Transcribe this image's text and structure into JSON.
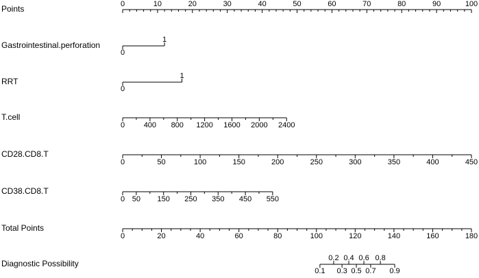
{
  "chart_data": {
    "type": "nomogram",
    "rows": [
      {
        "label": "Points",
        "range": [
          0,
          100
        ],
        "ticks": [
          0,
          10,
          20,
          30,
          40,
          50,
          60,
          70,
          80,
          90,
          100
        ],
        "minor_ticks": [
          2,
          4,
          6,
          8,
          12,
          14,
          16,
          18,
          22,
          24,
          26,
          28,
          32,
          34,
          36,
          38,
          42,
          44,
          46,
          48,
          52,
          54,
          56,
          58,
          62,
          64,
          66,
          68,
          72,
          74,
          76,
          78,
          82,
          84,
          86,
          88,
          92,
          94,
          96,
          98
        ],
        "label_side": "above"
      },
      {
        "label": "Gastrointestinal.perforation",
        "range": [
          0,
          1
        ],
        "points": [
          0,
          12
        ],
        "ticks": [
          0,
          1
        ],
        "label_side": "alternate"
      },
      {
        "label": "RRT",
        "range": [
          0,
          1
        ],
        "points": [
          0,
          17
        ],
        "ticks": [
          0,
          1
        ],
        "label_side": "alternate"
      },
      {
        "label": "T.cell",
        "range": [
          0,
          2400
        ],
        "points": [
          0,
          47
        ],
        "ticks": [
          0,
          400,
          800,
          1200,
          1600,
          2000,
          2400
        ],
        "minor_ticks": [
          200,
          600,
          1000,
          1400,
          1800,
          2200
        ],
        "label_side": "below"
      },
      {
        "label": "CD28.CD8.T",
        "range": [
          450,
          0
        ],
        "points": [
          100,
          0
        ],
        "ticks": [
          450,
          400,
          350,
          300,
          250,
          200,
          150,
          100,
          50,
          0
        ],
        "minor_ticks": [
          425,
          375,
          325,
          275,
          225,
          175,
          125,
          75,
          25
        ],
        "label_side": "below"
      },
      {
        "label": "CD38.CD8.T",
        "range": [
          0,
          550
        ],
        "points": [
          0,
          43
        ],
        "ticks": [
          0,
          50,
          150,
          250,
          350,
          450,
          550
        ],
        "minor_ticks": [
          100,
          200,
          300,
          400,
          500
        ],
        "label_side": "below"
      },
      {
        "label": "Total Points",
        "range": [
          0,
          180
        ],
        "ticks": [
          0,
          20,
          40,
          60,
          80,
          100,
          120,
          140,
          160,
          180
        ],
        "minor_ticks": [
          5,
          10,
          15,
          25,
          30,
          35,
          45,
          50,
          55,
          65,
          70,
          75,
          85,
          90,
          95,
          105,
          110,
          115,
          125,
          130,
          135,
          145,
          150,
          155,
          165,
          170,
          175
        ],
        "label_side": "below"
      },
      {
        "label": "Diagnostic Possibility",
        "ticks": [
          0.1,
          0.2,
          0.3,
          0.4,
          0.5,
          0.6,
          0.7,
          0.8,
          0.9
        ],
        "total_points": [
          101.8,
          108.9,
          113.2,
          116.7,
          120.6,
          124.5,
          128.0,
          133.0,
          140.4
        ],
        "label_side": "alternate"
      }
    ]
  }
}
